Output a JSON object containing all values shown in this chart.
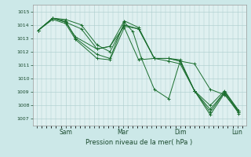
{
  "title": "",
  "xlabel": "Pression niveau de la mer( hPa )",
  "background_color": "#cce8e8",
  "plot_bg_color": "#dff0f0",
  "grid_color": "#aacccc",
  "line_color": "#1a6e2e",
  "ylim": [
    1006.5,
    1015.5
  ],
  "xlim": [
    -0.15,
    7.3
  ],
  "xtick_labels": [
    "",
    "Sam",
    "",
    "Mar",
    "",
    "Dim",
    "",
    "Lun"
  ],
  "xtick_positions": [
    0,
    1,
    2,
    3,
    4,
    5,
    6,
    7
  ],
  "ytick_values": [
    1007,
    1008,
    1009,
    1010,
    1011,
    1012,
    1013,
    1014,
    1015
  ],
  "series": [
    {
      "x": [
        0.05,
        0.55,
        1.0,
        1.35,
        2.1,
        2.55,
        3.05,
        3.35,
        3.65,
        4.1,
        4.6,
        5.0,
        5.5,
        6.05,
        6.55,
        7.05
      ],
      "y": [
        1013.6,
        1014.5,
        1014.3,
        1013.0,
        1011.8,
        1011.5,
        1014.2,
        1013.5,
        1011.5,
        1009.2,
        1008.5,
        1011.3,
        1011.1,
        1009.2,
        1008.8,
        1007.5
      ]
    },
    {
      "x": [
        0.05,
        0.55,
        1.0,
        1.35,
        2.1,
        2.55,
        3.05,
        3.55,
        4.1,
        4.6,
        5.0,
        5.5,
        6.05,
        6.55,
        7.05
      ],
      "y": [
        1013.6,
        1014.4,
        1014.1,
        1012.9,
        1011.5,
        1011.4,
        1013.8,
        1011.4,
        1011.5,
        1011.3,
        1011.1,
        1009.1,
        1007.3,
        1008.9,
        1007.4
      ]
    },
    {
      "x": [
        0.05,
        0.55,
        1.0,
        1.35,
        2.1,
        2.55,
        3.05,
        3.55,
        4.1,
        4.6,
        5.0,
        5.5,
        6.05,
        6.55,
        7.05
      ],
      "y": [
        1013.6,
        1014.5,
        1014.2,
        1013.1,
        1012.2,
        1012.4,
        1014.3,
        1013.8,
        1011.5,
        1011.5,
        1011.3,
        1009.1,
        1007.5,
        1009.0,
        1007.6
      ]
    },
    {
      "x": [
        0.05,
        0.55,
        1.0,
        1.55,
        2.1,
        2.55,
        3.05,
        3.55,
        4.1,
        4.6,
        5.0,
        5.5,
        6.05,
        6.55,
        7.05
      ],
      "y": [
        1013.6,
        1014.5,
        1014.2,
        1013.7,
        1012.2,
        1012.4,
        1013.9,
        1013.7,
        1011.5,
        1011.5,
        1011.3,
        1009.1,
        1007.7,
        1009.0,
        1007.5
      ]
    },
    {
      "x": [
        0.05,
        0.55,
        1.0,
        1.55,
        2.1,
        2.55,
        3.05,
        3.55,
        4.1,
        4.6,
        5.0,
        5.5,
        6.05,
        6.55,
        7.05
      ],
      "y": [
        1013.6,
        1014.5,
        1014.4,
        1014.0,
        1012.5,
        1012.0,
        1014.0,
        1013.7,
        1011.5,
        1011.5,
        1011.4,
        1009.1,
        1008.0,
        1009.1,
        1007.6
      ]
    }
  ]
}
